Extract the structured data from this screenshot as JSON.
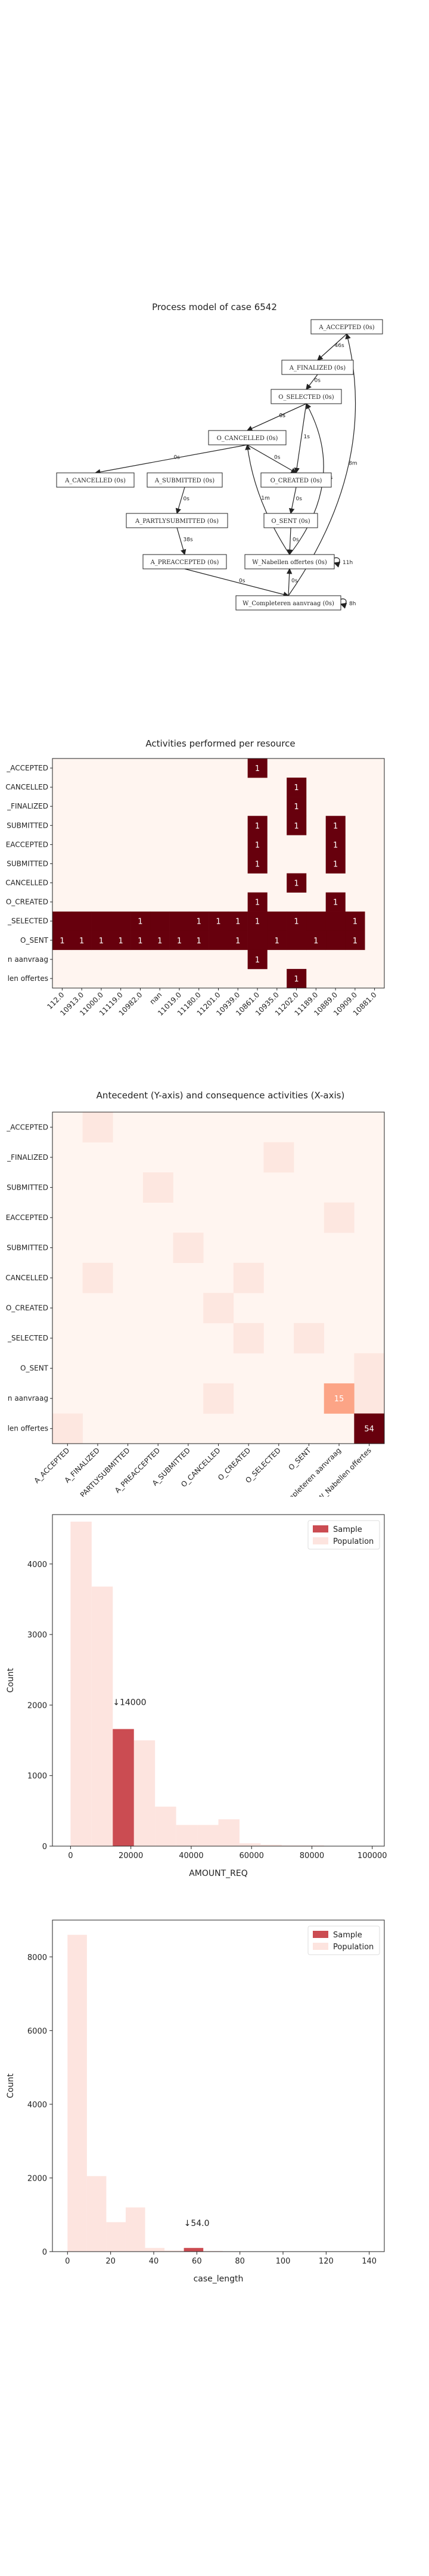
{
  "process_model": {
    "title": "Process model of case 6542",
    "nodes": [
      {
        "id": "aa",
        "label": "A_ACCEPTED (0s)"
      },
      {
        "id": "af",
        "label": "A_FINALIZED (0s)"
      },
      {
        "id": "os",
        "label": "O_SELECTED (0s)"
      },
      {
        "id": "oca",
        "label": "O_CANCELLED (0s)"
      },
      {
        "id": "acan",
        "label": "A_CANCELLED (0s)"
      },
      {
        "id": "asub",
        "label": "A_SUBMITTED (0s)"
      },
      {
        "id": "ocr",
        "label": "O_CREATED (0s)"
      },
      {
        "id": "apart",
        "label": "A_PARTLYSUBMITTED (0s)"
      },
      {
        "id": "osent",
        "label": "O_SENT (0s)"
      },
      {
        "id": "apre",
        "label": "A_PREACCEPTED (0s)"
      },
      {
        "id": "wn",
        "label": "W_Nabellen offertes (0s)"
      },
      {
        "id": "wc",
        "label": "W_Completeren aanvraag (0s)"
      }
    ],
    "edges": [
      {
        "from": "aa",
        "to": "af",
        "label": "46s"
      },
      {
        "from": "af",
        "to": "os",
        "label": "0s"
      },
      {
        "from": "os",
        "to": "oca",
        "label": "0s"
      },
      {
        "from": "os",
        "to": "oca",
        "label": "0s"
      },
      {
        "from": "oca",
        "to": "acan",
        "label": "0s"
      },
      {
        "from": "oca",
        "to": "ocr",
        "label": "0s"
      },
      {
        "from": "os",
        "to": "ocr",
        "label": "1s"
      },
      {
        "from": "asub",
        "to": "apart",
        "label": "0s"
      },
      {
        "from": "apart",
        "to": "apre",
        "label": "38s"
      },
      {
        "from": "ocr",
        "to": "osent",
        "label": "0s"
      },
      {
        "from": "osent",
        "to": "wn",
        "label": "0s"
      },
      {
        "from": "apre",
        "to": "wc",
        "label": "0s"
      },
      {
        "from": "wn",
        "to": "oca",
        "label": "1m"
      },
      {
        "from": "wn",
        "to": "os",
        "label": "48s"
      },
      {
        "from": "wn",
        "to": "wn",
        "label": "11h"
      },
      {
        "from": "wc",
        "to": "wn",
        "label": "0s"
      },
      {
        "from": "wc",
        "to": "aa",
        "label": "8m"
      },
      {
        "from": "wc",
        "to": "wc",
        "label": "8h"
      }
    ]
  },
  "resources_chart": {
    "title": "Activities performed per resource",
    "rows": [
      "A_ACCEPTED",
      "A_CANCELLED",
      "A_FINALIZED",
      "A_SUBMITTED",
      "A_PREACCEPTED",
      "A_PARTLYSUBMITTED",
      "O_CANCELLED",
      "O_CREATED",
      "O_SELECTED",
      "O_SENT",
      "W_Completeren aanvraag",
      "W_Nabellen offertes"
    ],
    "row_labels": [
      "_ACCEPTED",
      "CANCELLED",
      "_FINALIZED",
      "SUBMITTED",
      "EACCEPTED",
      "SUBMITTED",
      "CANCELLED",
      "O_CREATED",
      "_SELECTED",
      "O_SENT",
      "n aanvraag",
      "len offertes"
    ],
    "columns": [
      "112.0",
      "10913.0",
      "11000.0",
      "11119.0",
      "10982.0",
      "nan",
      "11019.0",
      "11180.0",
      "11201.0",
      "10939.0",
      "10861.0",
      "10935.0",
      "11202.0",
      "11189.0",
      "10889.0",
      "10909.0",
      "10881.0"
    ]
  },
  "antecedent_chart": {
    "title": "Antecedent (Y-axis) and consequence activities (X-axis)",
    "rows": [
      "A_ACCEPTED",
      "A_FINALIZED",
      "A_PARTLYSUBMITTED",
      "A_PREACCEPTED",
      "A_SUBMITTED",
      "O_CANCELLED",
      "O_CREATED",
      "O_SELECTED",
      "O_SENT",
      "W_Completeren aanvraag",
      "W_Nabellen offertes"
    ],
    "row_labels": [
      "_ACCEPTED",
      "_FINALIZED",
      "SUBMITTED",
      "EACCEPTED",
      "SUBMITTED",
      "CANCELLED",
      "O_CREATED",
      "_SELECTED",
      "O_SENT",
      "n aanvraag",
      "len offertes"
    ],
    "columns": [
      "A_ACCEPTED",
      "A_FINALIZED",
      "A_PARTLYSUBMITTED",
      "A_PREACCEPTED",
      "A_SUBMITTED",
      "O_CANCELLED",
      "O_CREATED",
      "O_SELECTED",
      "O_SENT",
      "W_Completeren aanvraag",
      "W_Nabellen offertes"
    ]
  },
  "amount_chart": {
    "xlabel": "AMOUNT_REQ",
    "ylabel": "Count",
    "legend": [
      "Sample",
      "Population"
    ],
    "annotation": "↓14000"
  },
  "caselen_chart": {
    "xlabel": "case_length",
    "ylabel": "Count",
    "legend": [
      "Sample",
      "Population"
    ],
    "annotation": "↓54.0"
  },
  "colors": {
    "dark": "#67000d",
    "light": "#fff5f0",
    "sample": "#cb4c52",
    "population": "#fde4df"
  },
  "chart_data": [
    {
      "type": "heatmap",
      "title": "Activities performed per resource",
      "rows": [
        "A_ACCEPTED",
        "A_CANCELLED",
        "A_FINALIZED",
        "A_SUBMITTED",
        "A_PREACCEPTED",
        "A_PARTLYSUBMITTED",
        "O_CANCELLED",
        "O_CREATED",
        "O_SELECTED",
        "O_SENT",
        "W_Completeren aanvraag",
        "W_Nabellen offertes"
      ],
      "columns": [
        "112.0",
        "10913.0",
        "11000.0",
        "11119.0",
        "10982.0",
        "nan",
        "11019.0",
        "11180.0",
        "11201.0",
        "10939.0",
        "10861.0",
        "10935.0",
        "11202.0",
        "11189.0",
        "10889.0",
        "10909.0",
        "10881.0"
      ],
      "cells": [
        [
          0,
          10,
          1
        ],
        [
          1,
          12,
          1
        ],
        [
          2,
          12,
          1
        ],
        [
          3,
          10,
          1
        ],
        [
          3,
          12,
          1
        ],
        [
          3,
          14,
          1
        ],
        [
          4,
          10,
          1
        ],
        [
          4,
          14,
          1
        ],
        [
          5,
          10,
          1
        ],
        [
          5,
          14,
          1
        ],
        [
          6,
          12,
          1
        ],
        [
          7,
          10,
          1
        ],
        [
          7,
          14,
          1
        ],
        [
          8,
          4,
          1
        ],
        [
          8,
          7,
          1
        ],
        [
          8,
          8,
          1
        ],
        [
          8,
          9,
          1
        ],
        [
          8,
          10,
          1
        ],
        [
          8,
          12,
          1
        ],
        [
          8,
          15,
          1
        ],
        [
          9,
          0,
          1
        ],
        [
          9,
          1,
          1
        ],
        [
          9,
          2,
          1
        ],
        [
          9,
          3,
          1
        ],
        [
          9,
          4,
          1
        ],
        [
          9,
          5,
          1
        ],
        [
          9,
          6,
          1
        ],
        [
          9,
          7,
          1
        ],
        [
          9,
          9,
          1
        ],
        [
          9,
          11,
          1
        ],
        [
          9,
          13,
          1
        ],
        [
          9,
          15,
          1
        ],
        [
          10,
          10,
          1
        ],
        [
          11,
          12,
          1
        ]
      ],
      "dark_bg_cells": [
        [
          8,
          0
        ],
        [
          8,
          1
        ],
        [
          8,
          2
        ],
        [
          8,
          3
        ],
        [
          8,
          5
        ],
        [
          8,
          6
        ],
        [
          8,
          11
        ],
        [
          8,
          13
        ],
        [
          8,
          14
        ],
        [
          9,
          8
        ],
        [
          9,
          10
        ],
        [
          9,
          12
        ],
        [
          9,
          14
        ]
      ]
    },
    {
      "type": "heatmap",
      "title": "Antecedent (Y-axis) and consequence activities (X-axis)",
      "rows": [
        "A_ACCEPTED",
        "A_FINALIZED",
        "A_PARTLYSUBMITTED",
        "A_PREACCEPTED",
        "A_SUBMITTED",
        "O_CANCELLED",
        "O_CREATED",
        "O_SELECTED",
        "O_SENT",
        "W_Completeren aanvraag",
        "W_Nabellen offertes"
      ],
      "columns": [
        "A_ACCEPTED",
        "A_FINALIZED",
        "A_PARTLYSUBMITTED",
        "A_PREACCEPTED",
        "A_SUBMITTED",
        "O_CANCELLED",
        "O_CREATED",
        "O_SELECTED",
        "O_SENT",
        "W_Completeren aanvraag",
        "W_Nabellen offertes"
      ],
      "labeled_cells": [
        {
          "row": 9,
          "col": 9,
          "value": 15
        },
        {
          "row": 10,
          "col": 10,
          "value": 54
        }
      ],
      "tinted_cells": [
        [
          0,
          1
        ],
        [
          1,
          7
        ],
        [
          2,
          3
        ],
        [
          3,
          9
        ],
        [
          4,
          4
        ],
        [
          5,
          1
        ],
        [
          5,
          6
        ],
        [
          6,
          5
        ],
        [
          7,
          8
        ],
        [
          7,
          6
        ],
        [
          8,
          10
        ],
        [
          9,
          5
        ],
        [
          9,
          10
        ],
        [
          10,
          0
        ]
      ]
    },
    {
      "type": "bar",
      "xlabel": "AMOUNT_REQ",
      "ylabel": "Count",
      "xlim": [
        -6000,
        104000
      ],
      "ylim": [
        0,
        4700
      ],
      "xticks": [
        0,
        20000,
        40000,
        60000,
        80000,
        100000
      ],
      "yticks": [
        0,
        1000,
        2000,
        3000,
        4000
      ],
      "bin_width": 7000,
      "population": [
        {
          "x": 0,
          "count": 4600
        },
        {
          "x": 7000,
          "count": 3680
        },
        {
          "x": 14000,
          "count": 1660
        },
        {
          "x": 21000,
          "count": 1500
        },
        {
          "x": 28000,
          "count": 560
        },
        {
          "x": 35000,
          "count": 300
        },
        {
          "x": 42000,
          "count": 300
        },
        {
          "x": 49000,
          "count": 380
        },
        {
          "x": 56000,
          "count": 40
        },
        {
          "x": 63000,
          "count": 20
        },
        {
          "x": 70000,
          "count": 10
        },
        {
          "x": 77000,
          "count": 10
        }
      ],
      "sample": [
        {
          "x": 14000,
          "count": 1660
        }
      ],
      "annotation": {
        "x": 14000,
        "y": 2000,
        "text": "↓14000"
      },
      "legend": [
        "Sample",
        "Population"
      ]
    },
    {
      "type": "bar",
      "xlabel": "case_length",
      "ylabel": "Count",
      "xlim": [
        -7,
        147
      ],
      "ylim": [
        0,
        9000
      ],
      "xticks": [
        0,
        20,
        40,
        60,
        80,
        100,
        120,
        140
      ],
      "yticks": [
        0,
        2000,
        4000,
        6000,
        8000
      ],
      "bin_width": 9,
      "population": [
        {
          "x": 0,
          "count": 8600
        },
        {
          "x": 9,
          "count": 2050
        },
        {
          "x": 18,
          "count": 800
        },
        {
          "x": 27,
          "count": 1200
        },
        {
          "x": 36,
          "count": 100
        },
        {
          "x": 45,
          "count": 30
        },
        {
          "x": 54,
          "count": 100
        },
        {
          "x": 63,
          "count": 20
        },
        {
          "x": 72,
          "count": 10
        },
        {
          "x": 81,
          "count": 5
        }
      ],
      "sample": [
        {
          "x": 54,
          "count": 100
        }
      ],
      "annotation": {
        "x": 54,
        "y": 700,
        "text": "↓54.0"
      },
      "legend": [
        "Sample",
        "Population"
      ]
    }
  ]
}
